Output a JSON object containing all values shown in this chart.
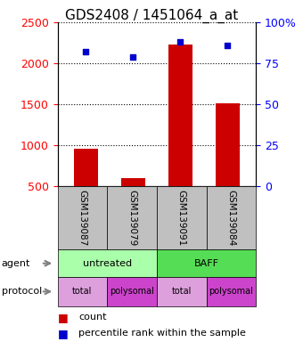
{
  "title": "GDS2408 / 1451064_a_at",
  "samples": [
    "GSM139087",
    "GSM139079",
    "GSM139091",
    "GSM139084"
  ],
  "bar_values": [
    960,
    600,
    2230,
    1510
  ],
  "scatter_percentile": [
    82,
    79,
    88,
    86
  ],
  "left_ylim": [
    500,
    2500
  ],
  "left_yticks": [
    500,
    1000,
    1500,
    2000,
    2500
  ],
  "right_ylim": [
    0,
    100
  ],
  "right_yticks": [
    0,
    25,
    50,
    75,
    100
  ],
  "right_yticklabels": [
    "0",
    "25",
    "50",
    "75",
    "100%"
  ],
  "bar_color": "#cc0000",
  "scatter_color": "#0000cc",
  "legend_count_label": "count",
  "legend_percentile_label": "percentile rank within the sample",
  "title_fontsize": 11,
  "tick_fontsize": 9,
  "gray_color": "#c0c0c0",
  "light_green": "#aaffaa",
  "bright_green": "#55dd55",
  "light_purple": "#dda0dd",
  "bright_purple": "#cc44cc",
  "agent_spans": [
    [
      0,
      2,
      "untreated",
      "#aaffaa"
    ],
    [
      2,
      4,
      "BAFF",
      "#55dd55"
    ]
  ],
  "protocol_info": [
    [
      0,
      1,
      "total",
      "#dda0dd"
    ],
    [
      1,
      2,
      "polysomal",
      "#cc44cc"
    ],
    [
      2,
      3,
      "total",
      "#dda0dd"
    ],
    [
      3,
      4,
      "polysomal",
      "#cc44cc"
    ]
  ]
}
